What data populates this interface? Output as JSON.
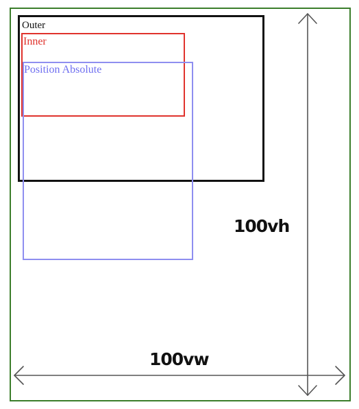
{
  "diagram": {
    "outer": {
      "label": "Outer",
      "color": "#111111"
    },
    "inner": {
      "label": "Inner",
      "color": "#e0322c"
    },
    "absolute": {
      "label": "Position Absolute",
      "color": "#6e6ef0"
    },
    "viewport_height_label": "100vh",
    "viewport_width_label": "100vw",
    "frame_color": "#3a7d2a",
    "arrow_color": "#555555"
  }
}
